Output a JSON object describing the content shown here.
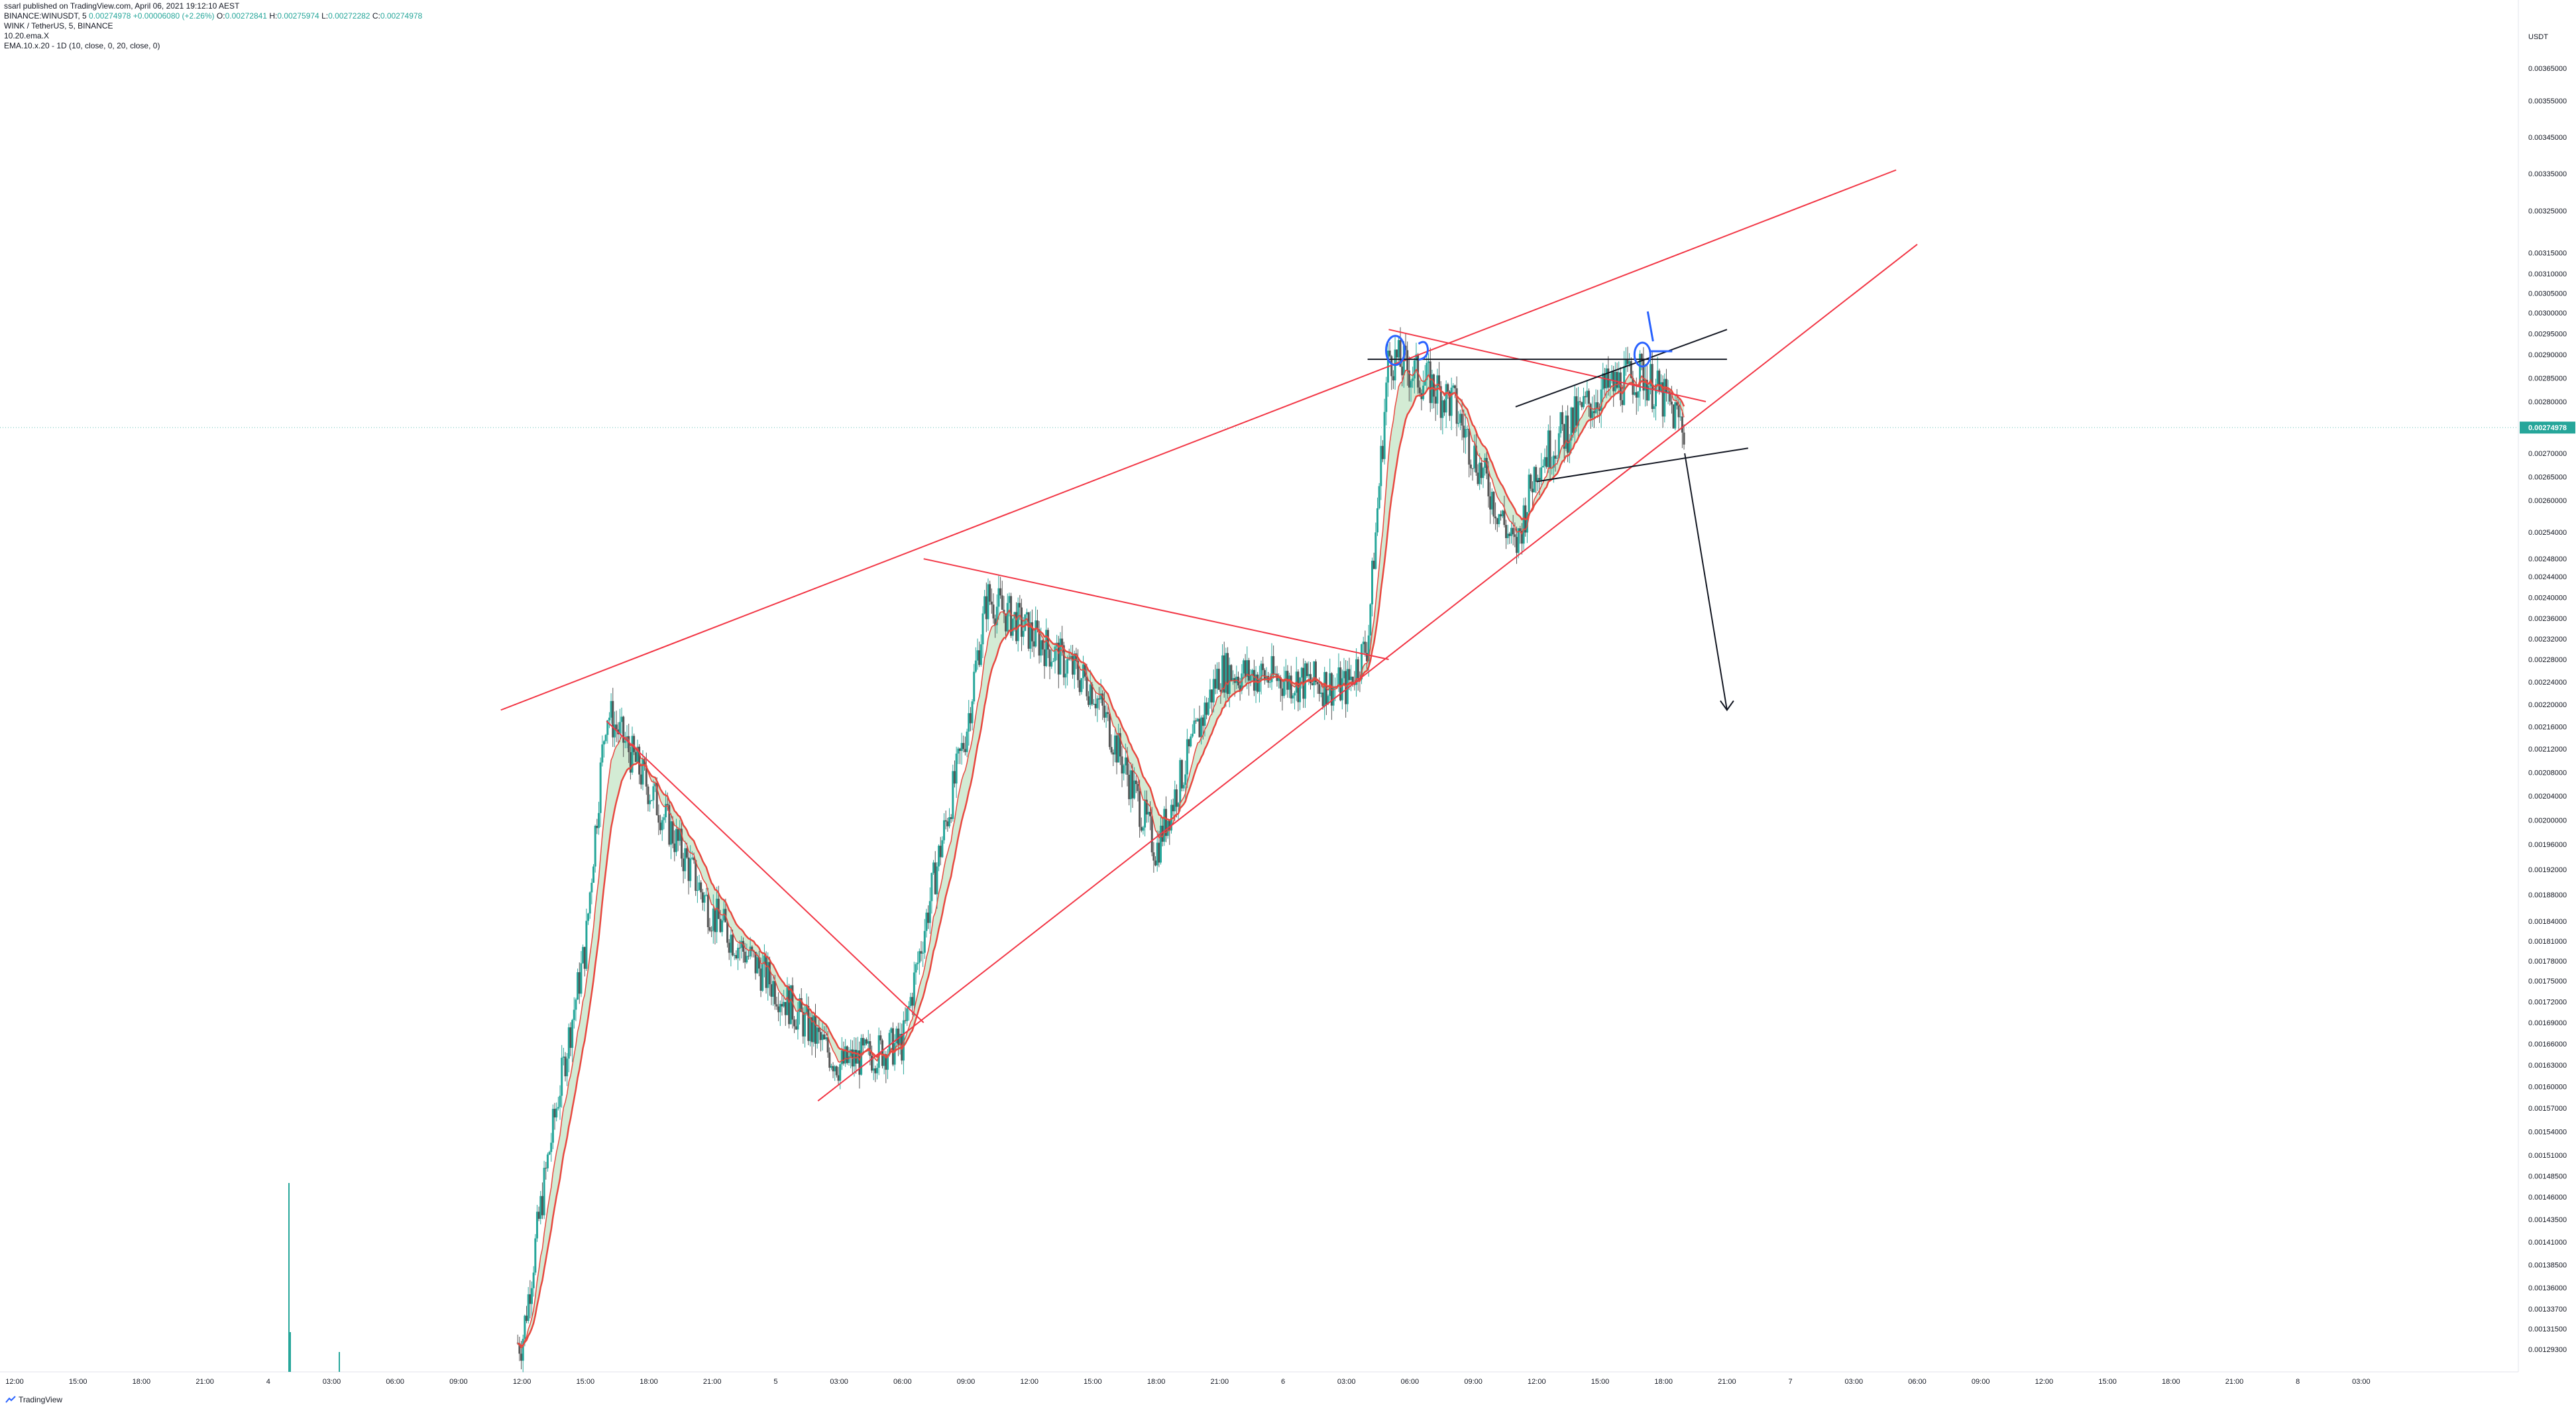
{
  "published": "ssarl published on TradingView.com, April 06, 2021 19:12:10 AEST",
  "symbol_line": {
    "prefix": "BINANCE:WINUSDT, 5",
    "price": "0.00274978",
    "change": "+0.00006080 (+2.26%)",
    "o_label": "O:",
    "o": "0.00272841",
    "h_label": "H:",
    "h": "0.00275974",
    "l_label": "L:",
    "l": "0.00272282",
    "c_label": "C:",
    "c": "0.00274978"
  },
  "indicators": [
    "WINK / TetherUS, 5, BINANCE",
    "10.20.ema.X",
    "EMA.10.x.20 - 1D (10, close, 0, 20, close, 0)"
  ],
  "footer": {
    "brand": "TradingView"
  },
  "colors": {
    "up": "#26a69a",
    "down": "#555555",
    "ema_fast": "#e8483f",
    "ema_slow": "#e8483f",
    "fill": "#c8e6c9",
    "trend_red": "#f23645",
    "trend_black": "#131722",
    "blue_marker": "#2962ff",
    "price_badge": "#26a69a",
    "volume": "#26a69a"
  },
  "chart_data": {
    "type": "candlestick",
    "interval": "5",
    "pair": "WINUSDT",
    "exchange": "BINANCE",
    "ylim": [
      0.00127,
      0.00379
    ],
    "y_ticks": [
      "USDT",
      "0.00365000",
      "0.00355000",
      "0.00345000",
      "0.00335000",
      "0.00325000",
      "0.00315000",
      "0.00310000",
      "0.00305000",
      "0.00300000",
      "0.00295000",
      "0.00290000",
      "0.00285000",
      "0.00280000",
      "0.00270000",
      "0.00265000",
      "0.00260000",
      "0.00254000",
      "0.00248000",
      "0.00244000",
      "0.00240000",
      "0.00236000",
      "0.00232000",
      "0.00228000",
      "0.00224000",
      "0.00220000",
      "0.00216000",
      "0.00212000",
      "0.00208000",
      "0.00204000",
      "0.00200000",
      "0.00196000",
      "0.00192000",
      "0.00188000",
      "0.00184000",
      "0.00181000",
      "0.00178000",
      "0.00175000",
      "0.00172000",
      "0.00169000",
      "0.00166000",
      "0.00163000",
      "0.00160000",
      "0.00157000",
      "0.00154000",
      "0.00151000",
      "0.00148500",
      "0.00146000",
      "0.00143500",
      "0.00141000",
      "0.00138500",
      "0.00136000",
      "0.00133700",
      "0.00131500",
      "0.00129300"
    ],
    "x_ticks": [
      "12:00",
      "15:00",
      "18:00",
      "21:00",
      "4",
      "03:00",
      "06:00",
      "09:00",
      "12:00",
      "15:00",
      "18:00",
      "21:00",
      "5",
      "03:00",
      "06:00",
      "09:00",
      "12:00",
      "15:00",
      "18:00",
      "21:00",
      "6",
      "03:00",
      "06:00",
      "09:00",
      "12:00",
      "15:00",
      "18:00",
      "21:00",
      "7",
      "03:00",
      "06:00",
      "09:00",
      "12:00",
      "15:00",
      "18:00",
      "21:00",
      "8",
      "03:00"
    ],
    "last_price": "0.00274978",
    "key_points": [
      {
        "time": "Apr 4 12:00",
        "value": 0.0013
      },
      {
        "time": "Apr 4 15:00",
        "value": 0.0018
      },
      {
        "time": "Apr 4 16:00",
        "value": 0.00219
      },
      {
        "time": "Apr 4 21:00",
        "value": 0.00185
      },
      {
        "time": "Apr 5 03:00",
        "value": 0.00163
      },
      {
        "time": "Apr 5 06:00",
        "value": 0.00166
      },
      {
        "time": "Apr 5 09:00",
        "value": 0.00215
      },
      {
        "time": "Apr 5 10:00",
        "value": 0.0024
      },
      {
        "time": "Apr 5 15:00",
        "value": 0.00223
      },
      {
        "time": "Apr 5 18:00",
        "value": 0.00195
      },
      {
        "time": "Apr 5 21:00",
        "value": 0.00226
      },
      {
        "time": "Apr 6 03:00",
        "value": 0.00223
      },
      {
        "time": "Apr 6 04:00",
        "value": 0.00231
      },
      {
        "time": "Apr 6 05:00",
        "value": 0.0029
      },
      {
        "time": "Apr 6 08:00",
        "value": 0.0028
      },
      {
        "time": "Apr 6 11:00",
        "value": 0.0025
      },
      {
        "time": "Apr 6 12:00",
        "value": 0.00268
      },
      {
        "time": "Apr 6 15:00",
        "value": 0.00282
      },
      {
        "time": "Apr 6 17:00",
        "value": 0.00286
      },
      {
        "time": "Apr 6 19:00",
        "value": 0.00275
      }
    ],
    "trendlines": [
      {
        "color": "red",
        "from": [
          "Apr 4 11:00",
          0.00219
        ],
        "to": [
          "Apr 7 05:00",
          0.00336
        ]
      },
      {
        "color": "red",
        "from": [
          "Apr 5 02:00",
          0.00158
        ],
        "to": [
          "Apr 7 06:00",
          0.00317
        ]
      },
      {
        "color": "red",
        "from": [
          "Apr 4 16:00",
          0.00217
        ],
        "to": [
          "Apr 5 07:00",
          0.00169
        ]
      },
      {
        "color": "red",
        "from": [
          "Apr 5 07:00",
          0.00248
        ],
        "to": [
          "Apr 6 05:00",
          0.00228
        ]
      },
      {
        "color": "red",
        "from": [
          "Apr 6 05:00",
          0.00296
        ],
        "to": [
          "Apr 6 20:00",
          0.0028
        ]
      },
      {
        "color": "black",
        "from": [
          "Apr 6 04:00",
          0.00289
        ],
        "to": [
          "Apr 6 21:00",
          0.00289
        ]
      },
      {
        "color": "black",
        "from": [
          "Apr 6 11:00",
          0.00279
        ],
        "to": [
          "Apr 6 21:00",
          0.00296
        ]
      },
      {
        "color": "black",
        "from": [
          "Apr 6 12:00",
          0.00264
        ],
        "to": [
          "Apr 6 22:00",
          0.00271
        ]
      },
      {
        "color": "black",
        "from": [
          "Apr 6 19:00",
          0.0027
        ],
        "to": [
          "Apr 6 21:00",
          0.00219
        ]
      }
    ]
  }
}
